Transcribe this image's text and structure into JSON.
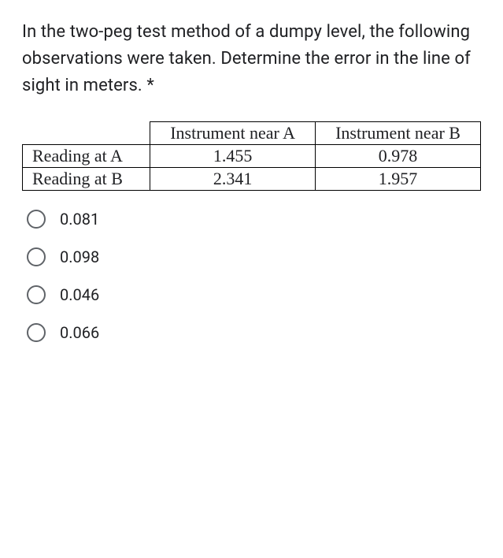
{
  "question": {
    "text": "In the two-peg test method of a dumpy level, the following observations were taken. Determine the error in the line of sight in meters.",
    "required_mark": "*"
  },
  "table": {
    "columns": [
      "",
      "Instrument near A",
      "Instrument near B"
    ],
    "rows": [
      {
        "label": "Reading at A",
        "values": [
          "1.455",
          "0.978"
        ]
      },
      {
        "label": "Reading at B",
        "values": [
          "2.341",
          "1.957"
        ]
      }
    ],
    "font_family": "Times New Roman",
    "border_color": "#000000",
    "cell_fontsize": 22
  },
  "options": [
    {
      "label": "0.081"
    },
    {
      "label": "0.098"
    },
    {
      "label": "0.046"
    },
    {
      "label": "0.066"
    }
  ],
  "styles": {
    "question_fontsize": 22,
    "option_fontsize": 20,
    "radio_border_color": "#5f6368",
    "text_color": "#202124",
    "background_color": "#ffffff"
  }
}
